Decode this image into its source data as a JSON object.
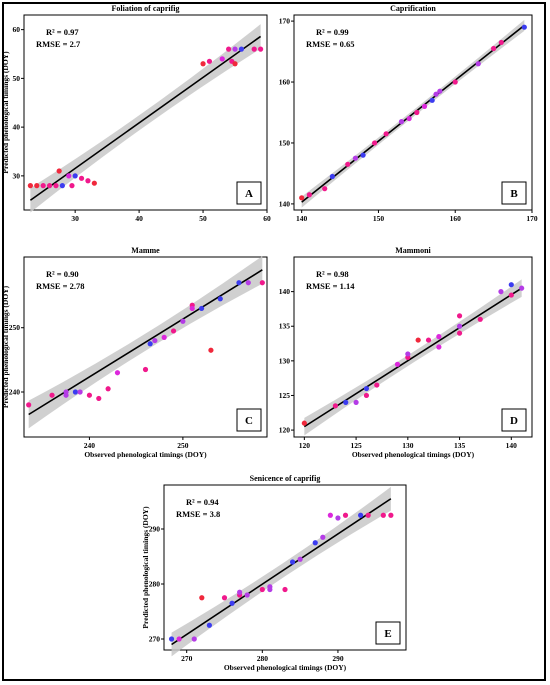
{
  "colors": {
    "band": "#c8c8c8",
    "fit": "#000000",
    "pink": "#f0198c",
    "red": "#f0283c",
    "blue": "#3c3cf0",
    "purple": "#b43ce6",
    "magenta": "#dc28dc"
  },
  "chart_data": [
    {
      "type": "scatter",
      "panel_label": "A",
      "title": "Foliation of caprifig",
      "r2_text": "R² = 0.97",
      "rmse_text": "RMSE = 2.7",
      "xlabel": "",
      "ylabel": "Predicted phenological timings (DOY)",
      "xlim": [
        22,
        60
      ],
      "ylim": [
        23,
        63
      ],
      "xticks": [
        30,
        40,
        50,
        60
      ],
      "yticks": [
        30,
        40,
        50,
        60
      ],
      "fit": [
        [
          23,
          25.0
        ],
        [
          59,
          58.6
        ]
      ],
      "band": 1.4,
      "points": [
        {
          "x": 23,
          "y": 28,
          "c": "red"
        },
        {
          "x": 24,
          "y": 28,
          "c": "red"
        },
        {
          "x": 25,
          "y": 28,
          "c": "pink"
        },
        {
          "x": 26,
          "y": 28,
          "c": "pink"
        },
        {
          "x": 27,
          "y": 28,
          "c": "pink"
        },
        {
          "x": 27.5,
          "y": 31,
          "c": "red"
        },
        {
          "x": 28,
          "y": 28,
          "c": "blue"
        },
        {
          "x": 29,
          "y": 30,
          "c": "magenta"
        },
        {
          "x": 29.5,
          "y": 28,
          "c": "pink"
        },
        {
          "x": 30,
          "y": 30,
          "c": "blue"
        },
        {
          "x": 31,
          "y": 29.5,
          "c": "pink"
        },
        {
          "x": 32,
          "y": 29,
          "c": "pink"
        },
        {
          "x": 33,
          "y": 28.5,
          "c": "red"
        },
        {
          "x": 50,
          "y": 53,
          "c": "red"
        },
        {
          "x": 51,
          "y": 53.5,
          "c": "pink"
        },
        {
          "x": 53,
          "y": 54,
          "c": "magenta"
        },
        {
          "x": 54,
          "y": 56,
          "c": "pink"
        },
        {
          "x": 54.5,
          "y": 53.5,
          "c": "pink"
        },
        {
          "x": 55,
          "y": 53,
          "c": "red"
        },
        {
          "x": 55,
          "y": 56,
          "c": "purple"
        },
        {
          "x": 56,
          "y": 56,
          "c": "blue"
        },
        {
          "x": 58,
          "y": 56,
          "c": "pink"
        },
        {
          "x": 59,
          "y": 56,
          "c": "pink"
        }
      ]
    },
    {
      "type": "scatter",
      "panel_label": "B",
      "title": "Caprification",
      "r2_text": "R² = 0.99",
      "rmse_text": "RMSE = 0.65",
      "xlabel": "",
      "ylabel": "",
      "xlim": [
        139,
        170
      ],
      "ylim": [
        139,
        171
      ],
      "xticks": [
        140,
        150,
        160,
        170
      ],
      "yticks": [
        140,
        150,
        160,
        170
      ],
      "fit": [
        [
          140,
          140.3
        ],
        [
          169,
          169.3
        ]
      ],
      "band": 0.5,
      "points": [
        {
          "x": 140,
          "y": 141,
          "c": "red"
        },
        {
          "x": 141,
          "y": 141.5,
          "c": "pink"
        },
        {
          "x": 143,
          "y": 142.5,
          "c": "pink"
        },
        {
          "x": 144,
          "y": 144.5,
          "c": "blue"
        },
        {
          "x": 146,
          "y": 146.5,
          "c": "pink"
        },
        {
          "x": 147,
          "y": 147.5,
          "c": "purple"
        },
        {
          "x": 148,
          "y": 148,
          "c": "blue"
        },
        {
          "x": 149.5,
          "y": 150,
          "c": "pink"
        },
        {
          "x": 151,
          "y": 151.5,
          "c": "pink"
        },
        {
          "x": 153,
          "y": 153.5,
          "c": "purple"
        },
        {
          "x": 154,
          "y": 154,
          "c": "magenta"
        },
        {
          "x": 155,
          "y": 155,
          "c": "pink"
        },
        {
          "x": 156,
          "y": 156,
          "c": "magenta"
        },
        {
          "x": 157,
          "y": 157,
          "c": "blue"
        },
        {
          "x": 157.5,
          "y": 158,
          "c": "purple"
        },
        {
          "x": 158,
          "y": 158.5,
          "c": "purple"
        },
        {
          "x": 160,
          "y": 160,
          "c": "pink"
        },
        {
          "x": 163,
          "y": 163,
          "c": "purple"
        },
        {
          "x": 165,
          "y": 165.5,
          "c": "pink"
        },
        {
          "x": 166,
          "y": 166.5,
          "c": "pink"
        },
        {
          "x": 169,
          "y": 169,
          "c": "blue"
        }
      ]
    },
    {
      "type": "scatter",
      "panel_label": "C",
      "title": "Mamme",
      "r2_text": "R² = 0.90",
      "rmse_text": "RMSE = 2.78",
      "xlabel": "Observed phenological timings (DOY)",
      "ylabel": "Predicted phenological timings (DOY)",
      "xlim": [
        233,
        259
      ],
      "ylim": [
        233,
        261
      ],
      "xticks": [
        240,
        250
      ],
      "yticks": [
        240,
        250
      ],
      "fit": [
        [
          233.5,
          236.5
        ],
        [
          258.5,
          259.0
        ]
      ],
      "band": 1.2,
      "points": [
        {
          "x": 233.5,
          "y": 238,
          "c": "pink"
        },
        {
          "x": 236,
          "y": 239.5,
          "c": "pink"
        },
        {
          "x": 237.5,
          "y": 239.5,
          "c": "purple"
        },
        {
          "x": 237.5,
          "y": 240,
          "c": "purple"
        },
        {
          "x": 238.5,
          "y": 240,
          "c": "blue"
        },
        {
          "x": 239,
          "y": 240,
          "c": "purple"
        },
        {
          "x": 240,
          "y": 239.5,
          "c": "pink"
        },
        {
          "x": 241,
          "y": 239,
          "c": "pink"
        },
        {
          "x": 242,
          "y": 240.5,
          "c": "pink"
        },
        {
          "x": 243,
          "y": 243,
          "c": "magenta"
        },
        {
          "x": 246,
          "y": 243.5,
          "c": "pink"
        },
        {
          "x": 246.5,
          "y": 247.5,
          "c": "blue"
        },
        {
          "x": 247,
          "y": 248,
          "c": "purple"
        },
        {
          "x": 248,
          "y": 248.5,
          "c": "magenta"
        },
        {
          "x": 249,
          "y": 249.5,
          "c": "pink"
        },
        {
          "x": 250,
          "y": 251,
          "c": "purple"
        },
        {
          "x": 251,
          "y": 253.5,
          "c": "pink"
        },
        {
          "x": 251,
          "y": 253,
          "c": "magenta"
        },
        {
          "x": 252,
          "y": 253,
          "c": "blue"
        },
        {
          "x": 253,
          "y": 246.5,
          "c": "red"
        },
        {
          "x": 254,
          "y": 254.5,
          "c": "blue"
        },
        {
          "x": 256,
          "y": 257,
          "c": "blue"
        },
        {
          "x": 257,
          "y": 257,
          "c": "purple"
        },
        {
          "x": 258.5,
          "y": 257,
          "c": "pink"
        }
      ]
    },
    {
      "type": "scatter",
      "panel_label": "D",
      "title": "Mammoni",
      "r2_text": "R² = 0.98",
      "rmse_text": "RMSE = 1.14",
      "xlabel": "Observed phenological timings (DOY)",
      "ylabel": "",
      "xlim": [
        119,
        142
      ],
      "ylim": [
        119,
        145
      ],
      "xticks": [
        120,
        125,
        130,
        135,
        140
      ],
      "yticks": [
        120,
        125,
        130,
        135,
        140
      ],
      "fit": [
        [
          120,
          120.5
        ],
        [
          141,
          140.5
        ]
      ],
      "band": 0.7,
      "points": [
        {
          "x": 120,
          "y": 121,
          "c": "red"
        },
        {
          "x": 123,
          "y": 123.5,
          "c": "pink"
        },
        {
          "x": 124,
          "y": 124,
          "c": "blue"
        },
        {
          "x": 125,
          "y": 124,
          "c": "purple"
        },
        {
          "x": 126,
          "y": 125,
          "c": "pink"
        },
        {
          "x": 126,
          "y": 126,
          "c": "blue"
        },
        {
          "x": 127,
          "y": 126.5,
          "c": "pink"
        },
        {
          "x": 129,
          "y": 129.5,
          "c": "magenta"
        },
        {
          "x": 130,
          "y": 130.5,
          "c": "pink"
        },
        {
          "x": 130,
          "y": 131,
          "c": "purple"
        },
        {
          "x": 131,
          "y": 133,
          "c": "red"
        },
        {
          "x": 132,
          "y": 133,
          "c": "pink"
        },
        {
          "x": 133,
          "y": 133.5,
          "c": "magenta"
        },
        {
          "x": 133,
          "y": 132,
          "c": "magenta"
        },
        {
          "x": 135,
          "y": 136.5,
          "c": "pink"
        },
        {
          "x": 135,
          "y": 134,
          "c": "pink"
        },
        {
          "x": 135,
          "y": 135,
          "c": "purple"
        },
        {
          "x": 137,
          "y": 136,
          "c": "pink"
        },
        {
          "x": 139,
          "y": 140,
          "c": "purple"
        },
        {
          "x": 140,
          "y": 139.5,
          "c": "pink"
        },
        {
          "x": 140,
          "y": 141,
          "c": "blue"
        },
        {
          "x": 141,
          "y": 140.5,
          "c": "purple"
        }
      ]
    },
    {
      "type": "scatter",
      "panel_label": "E",
      "title": "Senicence of caprifig",
      "r2_text": "R² = 0.94",
      "rmse_text": "RMSE = 3.8",
      "xlabel": "Observed phenological timings (DOY)",
      "ylabel": "Predicted phenological timings (DOY)",
      "xlim": [
        267,
        299
      ],
      "ylim": [
        268,
        298
      ],
      "xticks": [
        270,
        280,
        290
      ],
      "yticks": [
        270,
        280,
        290
      ],
      "fit": [
        [
          268,
          269.0
        ],
        [
          297,
          295.5
        ]
      ],
      "band": 1.2,
      "points": [
        {
          "x": 268,
          "y": 270,
          "c": "blue"
        },
        {
          "x": 269,
          "y": 270,
          "c": "magenta"
        },
        {
          "x": 271,
          "y": 270,
          "c": "purple"
        },
        {
          "x": 272,
          "y": 277.5,
          "c": "red"
        },
        {
          "x": 273,
          "y": 272.5,
          "c": "blue"
        },
        {
          "x": 275,
          "y": 277.5,
          "c": "pink"
        },
        {
          "x": 276,
          "y": 276.5,
          "c": "blue"
        },
        {
          "x": 277,
          "y": 278,
          "c": "pink"
        },
        {
          "x": 277,
          "y": 278.5,
          "c": "purple"
        },
        {
          "x": 278,
          "y": 278,
          "c": "purple"
        },
        {
          "x": 280,
          "y": 279,
          "c": "pink"
        },
        {
          "x": 281,
          "y": 279,
          "c": "purple"
        },
        {
          "x": 281,
          "y": 279.5,
          "c": "purple"
        },
        {
          "x": 283,
          "y": 279,
          "c": "pink"
        },
        {
          "x": 284,
          "y": 284,
          "c": "blue"
        },
        {
          "x": 285,
          "y": 284.5,
          "c": "purple"
        },
        {
          "x": 287,
          "y": 287.5,
          "c": "blue"
        },
        {
          "x": 288,
          "y": 288.5,
          "c": "purple"
        },
        {
          "x": 289,
          "y": 292.5,
          "c": "magenta"
        },
        {
          "x": 290,
          "y": 292,
          "c": "purple"
        },
        {
          "x": 291,
          "y": 292.5,
          "c": "pink"
        },
        {
          "x": 293,
          "y": 292.5,
          "c": "blue"
        },
        {
          "x": 294,
          "y": 292.5,
          "c": "pink"
        },
        {
          "x": 296,
          "y": 292.5,
          "c": "pink"
        },
        {
          "x": 297,
          "y": 292.5,
          "c": "pink"
        }
      ]
    }
  ]
}
